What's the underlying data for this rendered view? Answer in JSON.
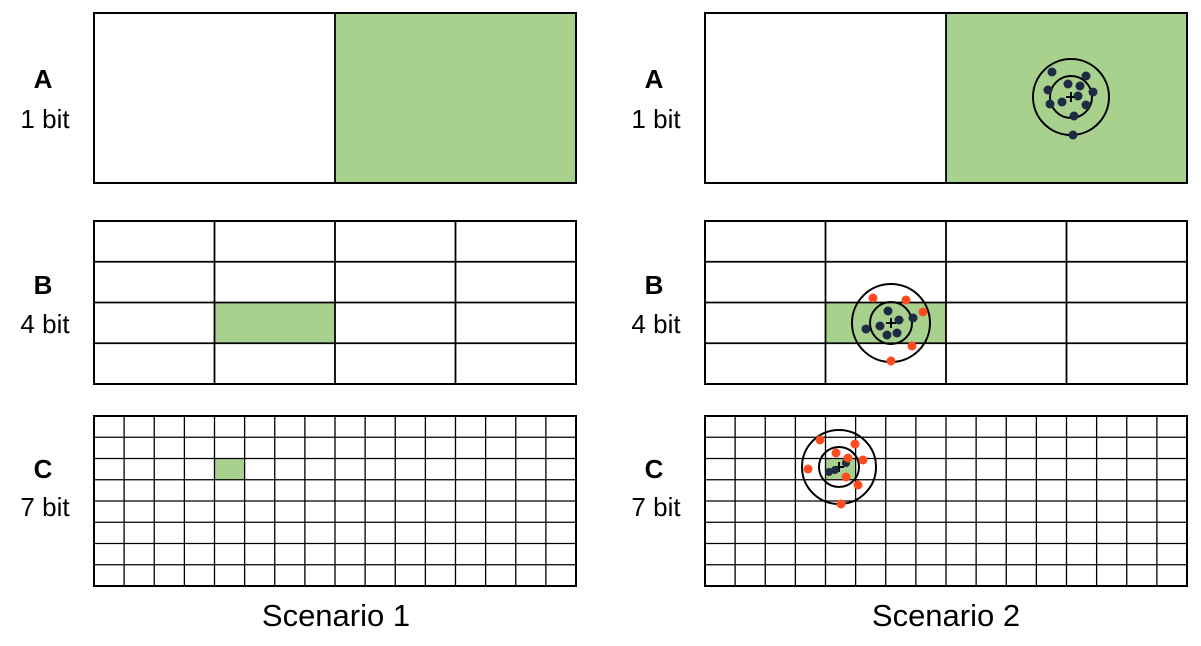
{
  "scenarios": [
    {
      "caption": "Scenario 1",
      "panels": [
        {
          "letter": "A",
          "bits": "1 bit",
          "rows": 1,
          "cols": 2,
          "highlight": {
            "row": 0,
            "col": 1
          }
        },
        {
          "letter": "B",
          "bits": "4 bit",
          "rows": 4,
          "cols": 4,
          "highlight": {
            "row": 2,
            "col": 1
          }
        },
        {
          "letter": "C",
          "bits": "7 bit",
          "rows": 8,
          "cols": 16,
          "highlight": {
            "row": 2,
            "col": 4
          }
        }
      ]
    },
    {
      "caption": "Scenario 2",
      "panels": [
        {
          "letter": "A",
          "bits": "1 bit",
          "rows": 1,
          "cols": 2,
          "highlight": {
            "row": 0,
            "col": 1
          }
        },
        {
          "letter": "B",
          "bits": "4 bit",
          "rows": 4,
          "cols": 4,
          "highlight": {
            "row": 2,
            "col": 1
          }
        },
        {
          "letter": "C",
          "bits": "7 bit",
          "rows": 8,
          "cols": 16,
          "highlight": {
            "row": 2,
            "col": 4
          }
        }
      ]
    }
  ],
  "colors": {
    "highlight_fill": "#a9d18e",
    "grid_line": "#000000",
    "measurement_dot": "#1f2a44",
    "outlier_dot": "#ff4b1f"
  }
}
